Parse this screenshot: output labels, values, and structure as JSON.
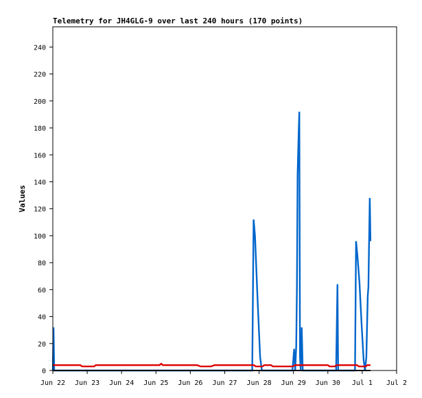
{
  "chart_data": {
    "type": "line",
    "title": "Telemetry for JH4GLG-9 over last 240 hours (170 points)",
    "xlabel": "",
    "ylabel": "Values",
    "ylim": [
      0,
      255
    ],
    "xlim": [
      0,
      10
    ],
    "grid": false,
    "y_ticks": [
      0,
      20,
      40,
      60,
      80,
      100,
      120,
      140,
      160,
      180,
      200,
      220,
      240
    ],
    "x_ticks": [
      {
        "x": 0,
        "label": "Jun 22"
      },
      {
        "x": 1,
        "label": "Jun 23"
      },
      {
        "x": 2,
        "label": "Jun 24"
      },
      {
        "x": 3,
        "label": "Jun 25"
      },
      {
        "x": 4,
        "label": "Jun 26"
      },
      {
        "x": 5,
        "label": "Jun 27"
      },
      {
        "x": 6,
        "label": "Jun 28"
      },
      {
        "x": 7,
        "label": "Jun 29"
      },
      {
        "x": 8,
        "label": "Jun 30"
      },
      {
        "x": 9,
        "label": "Jul 1"
      },
      {
        "x": 10,
        "label": "Jul 2"
      }
    ],
    "series": [
      {
        "color": "#0066cc",
        "points": [
          [
            0.0,
            0
          ],
          [
            0.02,
            32
          ],
          [
            0.04,
            0
          ],
          [
            5.8,
            0
          ],
          [
            5.84,
            112
          ],
          [
            5.88,
            100
          ],
          [
            5.96,
            50
          ],
          [
            6.03,
            10
          ],
          [
            6.08,
            0
          ],
          [
            6.97,
            0
          ],
          [
            7.02,
            16
          ],
          [
            7.05,
            0
          ],
          [
            7.08,
            18
          ],
          [
            7.1,
            60
          ],
          [
            7.12,
            145
          ],
          [
            7.15,
            175
          ],
          [
            7.17,
            192
          ],
          [
            7.19,
            10
          ],
          [
            7.21,
            0
          ],
          [
            7.24,
            32
          ],
          [
            7.27,
            0
          ],
          [
            8.24,
            0
          ],
          [
            8.28,
            64
          ],
          [
            8.3,
            0
          ],
          [
            8.79,
            0
          ],
          [
            8.82,
            96
          ],
          [
            8.86,
            85
          ],
          [
            8.92,
            65
          ],
          [
            8.98,
            35
          ],
          [
            9.04,
            8
          ],
          [
            9.08,
            0
          ],
          [
            9.12,
            10
          ],
          [
            9.16,
            55
          ],
          [
            9.18,
            62
          ],
          [
            9.2,
            96
          ],
          [
            9.22,
            128
          ],
          [
            9.24,
            96
          ]
        ]
      },
      {
        "color": "#dd0000",
        "points": [
          [
            0.0,
            4
          ],
          [
            0.8,
            4
          ],
          [
            0.85,
            3
          ],
          [
            1.2,
            3
          ],
          [
            1.25,
            4
          ],
          [
            3.1,
            4
          ],
          [
            3.15,
            5
          ],
          [
            3.2,
            4
          ],
          [
            4.2,
            4
          ],
          [
            4.3,
            3
          ],
          [
            4.6,
            3
          ],
          [
            4.7,
            4
          ],
          [
            5.85,
            4
          ],
          [
            5.9,
            3
          ],
          [
            6.1,
            3
          ],
          [
            6.15,
            4
          ],
          [
            6.35,
            4
          ],
          [
            6.4,
            3
          ],
          [
            6.97,
            3
          ],
          [
            7.05,
            4
          ],
          [
            8.0,
            4
          ],
          [
            8.05,
            3
          ],
          [
            8.2,
            3
          ],
          [
            8.25,
            4
          ],
          [
            8.85,
            4
          ],
          [
            8.9,
            3
          ],
          [
            9.1,
            3
          ],
          [
            9.15,
            4
          ],
          [
            9.24,
            4
          ]
        ]
      },
      {
        "color": "#000000",
        "points": [
          [
            0.0,
            0
          ],
          [
            9.24,
            0
          ]
        ]
      }
    ]
  }
}
